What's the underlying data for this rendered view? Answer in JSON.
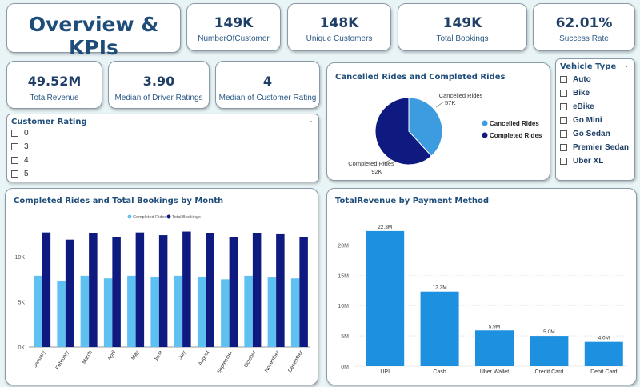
{
  "title": "Overview & KPIs",
  "kpis": {
    "customers": {
      "value": "149K",
      "label": "NumberOfCustomer"
    },
    "unique": {
      "value": "148K",
      "label": "Unique Customers"
    },
    "bookings": {
      "value": "149K",
      "label": "Total Bookings"
    },
    "success": {
      "value": "62.01%",
      "label": "Success Rate"
    },
    "revenue": {
      "value": "49.52M",
      "label": "TotalRevenue"
    },
    "driver": {
      "value": "3.90",
      "label": "Median of Driver Ratings"
    },
    "customer_rating": {
      "value": "4",
      "label": "Median of Customer Rating"
    }
  },
  "customer_rating_slicer": {
    "title": "Customer Rating",
    "items": [
      "0",
      "3",
      "4",
      "5"
    ]
  },
  "vehicle_slicer": {
    "title": "Vehicle Type",
    "items": [
      "Auto",
      "Bike",
      "eBike",
      "Go Mini",
      "Go Sedan",
      "Premier Sedan",
      "Uber XL"
    ]
  },
  "chart_data": [
    {
      "type": "pie",
      "title": "Cancelled Rides and Completed Rides",
      "slices": [
        {
          "name": "Cancelled Rides",
          "value": 57,
          "label": "57K",
          "color": "#3d9ce0"
        },
        {
          "name": "Completed Rides",
          "value": 92,
          "label": "92K",
          "color": "#0f1a80"
        }
      ]
    },
    {
      "type": "bar",
      "title": "Completed Rides and Total Bookings by Month",
      "categories": [
        "January",
        "February",
        "March",
        "April",
        "May",
        "June",
        "July",
        "August",
        "September",
        "October",
        "November",
        "December"
      ],
      "series": [
        {
          "name": "Completed Rides",
          "color": "#5ec1f2",
          "values": [
            7900,
            7300,
            7900,
            7600,
            7900,
            7800,
            7900,
            7800,
            7500,
            7900,
            7700,
            7600
          ]
        },
        {
          "name": "Total Bookings",
          "color": "#0f1a80",
          "values": [
            12700,
            11900,
            12600,
            12200,
            12700,
            12400,
            12800,
            12600,
            12200,
            12600,
            12500,
            12200
          ]
        }
      ],
      "yticks": [
        "0K",
        "5K",
        "10K"
      ],
      "ylim": [
        0,
        14000
      ],
      "legend": "top"
    },
    {
      "type": "bar",
      "title": "TotalRevenue by Payment Method",
      "categories": [
        "UPI",
        "Cash",
        "Uber Wallet",
        "Credit Card",
        "Debit Card"
      ],
      "values": [
        22.3,
        12.3,
        5.9,
        5.0,
        4.0
      ],
      "data_labels": [
        "22.3M",
        "12.3M",
        "5.9M",
        "5.0M",
        "4.0M"
      ],
      "yticks": [
        "0M",
        "5M",
        "10M",
        "15M",
        "20M"
      ],
      "ylim": [
        0,
        24
      ],
      "color": "#1e90e0",
      "grid": true
    }
  ]
}
